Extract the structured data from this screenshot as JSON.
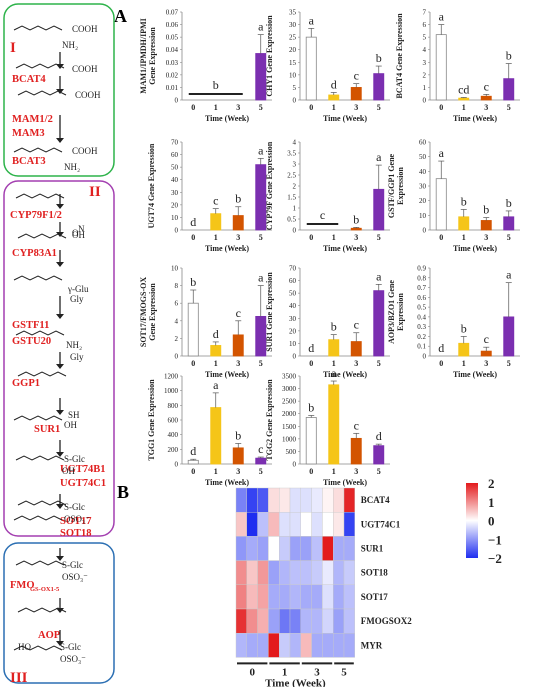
{
  "panel_labels": {
    "a": "A",
    "b": "B"
  },
  "pathway": {
    "stages": [
      "I",
      "II",
      "III"
    ],
    "genes": [
      "BCAT4",
      "MAM1/2",
      "MAM3",
      "BCAT3",
      "CYP79F1/2",
      "CYP83A1",
      "GSTF11",
      "GSTU20",
      "GGP1",
      "SUR1",
      "UGT74B1",
      "UGT74C1",
      "SOT17",
      "SOT18",
      "AOP"
    ],
    "fmo_main": "FMO",
    "fmo_sub": "GS-OX1-5",
    "chem_labels": [
      "COOH",
      "NH₂",
      "COOH",
      "COOH",
      "COOH",
      "NH₂",
      "OH",
      "N",
      "O",
      "γ-Glu",
      "Gly",
      "NH₂",
      "Gly",
      "SH",
      "OH",
      "S-Glc",
      "OH",
      "S-Glc",
      "OSO₃⁻",
      "S-Glc",
      "OSO₃⁻",
      "HO",
      "S-Glc",
      "OSO₃⁻"
    ]
  },
  "chart_data": [
    {
      "type": "bar",
      "ylabel": "MAM1/IPMDH/IPMI\nGene Expression",
      "xlabel": "Time (Week)",
      "categories": [
        "0",
        "1",
        "3",
        "5"
      ],
      "values": [
        0,
        0,
        0,
        0.037
      ],
      "errors": [
        0,
        0,
        0,
        0.015
      ],
      "ylim": [
        0,
        0.07
      ],
      "ticks": [
        "0",
        "0.01",
        "0.02",
        "0.03",
        "0.04",
        "0.05",
        "0.06",
        "0.07"
      ],
      "letters": [
        "",
        "",
        "",
        "a"
      ],
      "group_letter": "b",
      "colors": [
        "#ffffff",
        "#f5c518",
        "#d35400",
        "#7b2fb0"
      ]
    },
    {
      "type": "bar",
      "ylabel": "CHY1 Gene Expression",
      "xlabel": "Time (Week)",
      "categories": [
        "0",
        "1",
        "3",
        "5"
      ],
      "values": [
        25,
        2,
        5,
        10.5
      ],
      "errors": [
        3.5,
        1,
        1.5,
        3
      ],
      "ylim": [
        0,
        35
      ],
      "ticks": [
        "0",
        "5",
        "10",
        "15",
        "20",
        "25",
        "30",
        "35"
      ],
      "letters": [
        "a",
        "d",
        "c",
        "b"
      ],
      "colors": [
        "#ffffff",
        "#f5c518",
        "#d35400",
        "#7b2fb0"
      ]
    },
    {
      "type": "bar",
      "ylabel": "BCAT4 Gene Expression",
      "xlabel": "Time (Week)",
      "categories": [
        "0",
        "1",
        "3",
        "5"
      ],
      "values": [
        5.2,
        0.15,
        0.3,
        1.7
      ],
      "errors": [
        0.8,
        0.05,
        0.15,
        1.2
      ],
      "ylim": [
        0,
        7
      ],
      "ticks": [
        "0",
        "1",
        "2",
        "3",
        "4",
        "5",
        "6",
        "7"
      ],
      "letters": [
        "a",
        "cd",
        "c",
        "b"
      ],
      "colors": [
        "#ffffff",
        "#f5c518",
        "#d35400",
        "#7b2fb0"
      ]
    },
    {
      "type": "bar",
      "ylabel": "UGT74 Gene Expression",
      "xlabel": "Time (Week)",
      "categories": [
        "0",
        "1",
        "3",
        "5"
      ],
      "values": [
        0,
        13,
        11.5,
        52
      ],
      "errors": [
        0,
        4,
        7,
        5
      ],
      "ylim": [
        0,
        70
      ],
      "ticks": [
        "0",
        "10",
        "20",
        "30",
        "40",
        "50",
        "60",
        "70"
      ],
      "letters": [
        "d",
        "c",
        "b",
        "a"
      ],
      "colors": [
        "#ffffff",
        "#f5c518",
        "#d35400",
        "#7b2fb0"
      ]
    },
    {
      "type": "bar",
      "ylabel": "CYP79F Gene Expression",
      "xlabel": "Time (Week)",
      "categories": [
        "0",
        "1",
        "3",
        "5"
      ],
      "values": [
        0,
        0,
        0.08,
        1.85
      ],
      "errors": [
        0,
        0,
        0.04,
        1.1
      ],
      "ylim": [
        0,
        4
      ],
      "ticks": [
        "0",
        "0.5",
        "1",
        "1.5",
        "2",
        "2.5",
        "3",
        "3.5",
        "4"
      ],
      "letters": [
        "",
        "",
        "b",
        "a"
      ],
      "group_letter": "c",
      "colors": [
        "#ffffff",
        "#f5c518",
        "#d35400",
        "#7b2fb0"
      ]
    },
    {
      "type": "bar",
      "ylabel": "GSTF/GGP1 Gene\nExpression",
      "xlabel": "Time (Week)",
      "categories": [
        "0",
        "1",
        "3",
        "5"
      ],
      "values": [
        35,
        9,
        6.5,
        9
      ],
      "errors": [
        12,
        5,
        2,
        4
      ],
      "ylim": [
        0,
        60
      ],
      "ticks": [
        "0",
        "10",
        "20",
        "30",
        "40",
        "50",
        "60"
      ],
      "letters": [
        "a",
        "b",
        "b",
        "b"
      ],
      "colors": [
        "#ffffff",
        "#f5c518",
        "#d35400",
        "#7b2fb0"
      ]
    },
    {
      "type": "bar",
      "ylabel": "SOT17/FMOGS-OX\nGene Expression",
      "xlabel": "Time (Week)",
      "categories": [
        "0",
        "1",
        "3",
        "5"
      ],
      "values": [
        6,
        1.2,
        2.4,
        4.5
      ],
      "errors": [
        1.5,
        0.4,
        1.6,
        3.5
      ],
      "ylim": [
        0,
        10
      ],
      "ticks": [
        "0",
        "2",
        "4",
        "6",
        "8",
        "10"
      ],
      "letters": [
        "b",
        "d",
        "c",
        "a"
      ],
      "colors": [
        "#ffffff",
        "#f5c518",
        "#d35400",
        "#7b2fb0"
      ]
    },
    {
      "type": "bar",
      "ylabel": "SUR1 Gene Expression",
      "xlabel": "Time (Week)",
      "categories": [
        "0",
        "1",
        "3",
        "5"
      ],
      "values": [
        0,
        13,
        11.5,
        52
      ],
      "errors": [
        0,
        4,
        7,
        5
      ],
      "ylim": [
        0,
        70
      ],
      "ticks": [
        "0",
        "10",
        "20",
        "30",
        "40",
        "50",
        "60",
        "70"
      ],
      "letters": [
        "d",
        "b",
        "c",
        "a"
      ],
      "colors": [
        "#ffffff",
        "#f5c518",
        "#d35400",
        "#7b2fb0"
      ]
    },
    {
      "type": "bar",
      "ylabel": "AOP3/BZO1 Gene\nExpression",
      "xlabel": "Time (Week)",
      "categories": [
        "0",
        "1",
        "3",
        "5"
      ],
      "values": [
        0,
        0.13,
        0.05,
        0.4
      ],
      "errors": [
        0,
        0.07,
        0.04,
        0.35
      ],
      "ylim": [
        0,
        0.9
      ],
      "ticks": [
        "0",
        "0.1",
        "0.2",
        "0.3",
        "0.4",
        "0.5",
        "0.6",
        "0.7",
        "0.8",
        "0.9"
      ],
      "letters": [
        "d",
        "b",
        "c",
        "a"
      ],
      "colors": [
        "#ffffff",
        "#f5c518",
        "#d35400",
        "#7b2fb0"
      ]
    },
    {
      "type": "bar",
      "ylabel": "TGG1 Gene Expression",
      "xlabel": "Time (Week)",
      "categories": [
        "0",
        "1",
        "3",
        "5"
      ],
      "values": [
        50,
        770,
        220,
        80
      ],
      "errors": [
        15,
        200,
        60,
        15
      ],
      "ylim": [
        0,
        1200
      ],
      "ticks": [
        "0",
        "200",
        "400",
        "600",
        "800",
        "1000",
        "1200"
      ],
      "letters": [
        "d",
        "a",
        "b",
        "c"
      ],
      "colors": [
        "#ffffff",
        "#f5c518",
        "#d35400",
        "#7b2fb0"
      ]
    },
    {
      "type": "bar",
      "ylabel": "TGG2 Gene Expression",
      "xlabel": "Time (Week)",
      "categories": [
        "0",
        "1",
        "3",
        "5"
      ],
      "values": [
        1850,
        3150,
        1020,
        730
      ],
      "errors": [
        80,
        150,
        200,
        60
      ],
      "ylim": [
        0,
        3500
      ],
      "ticks": [
        "0",
        "500",
        "1000",
        "1500",
        "2000",
        "2500",
        "3000",
        "3500"
      ],
      "letters": [
        "b",
        "a",
        "c",
        "d"
      ],
      "colors": [
        "#ffffff",
        "#f5c518",
        "#d35400",
        "#7b2fb0"
      ]
    }
  ],
  "heatmap": {
    "type": "heatmap",
    "rows": [
      "BCAT4",
      "UGT74C1",
      "SUR1",
      "SOT18",
      "SOT17",
      "FMOGSOX2",
      "MYR"
    ],
    "groups": [
      "0",
      "1",
      "3",
      "5"
    ],
    "xlabel": "Time (Week)",
    "colorbar_ticks": [
      "2",
      "1",
      "0",
      "−1",
      "−2"
    ],
    "colorbar_range": [
      -2,
      2
    ],
    "colors": {
      "high": "#e31a1c",
      "mid": "#ffffff",
      "low": "#1f2ef0"
    },
    "values": [
      [
        -1.2,
        -1.8,
        -1.6,
        0.3,
        0.2,
        -0.3,
        -0.3,
        -0.2,
        0.1,
        0.3,
        1.9
      ],
      [
        0.5,
        -2.0,
        -0.6,
        0.6,
        -0.3,
        -0.3,
        0.0,
        -0.3,
        0.0,
        0.2,
        -1.8
      ],
      [
        -1.0,
        -0.8,
        -0.9,
        0.0,
        -0.5,
        -0.9,
        -0.9,
        -0.6,
        2.2,
        -0.8,
        -0.8
      ],
      [
        1.0,
        0.5,
        0.9,
        -0.9,
        -0.7,
        -0.6,
        -0.6,
        -0.5,
        -0.2,
        -0.7,
        -0.5
      ],
      [
        1.1,
        0.6,
        0.8,
        -0.8,
        -0.8,
        -0.7,
        -0.8,
        -0.8,
        -0.3,
        -0.8,
        -0.6
      ],
      [
        1.8,
        1.0,
        0.7,
        -0.9,
        -1.3,
        -1.2,
        -0.7,
        -0.7,
        -0.4,
        -0.9,
        -0.6
      ],
      [
        -0.7,
        -0.8,
        -0.8,
        2.4,
        -0.5,
        -0.7,
        0.6,
        -0.8,
        -0.8,
        -0.8,
        -0.8
      ]
    ]
  }
}
